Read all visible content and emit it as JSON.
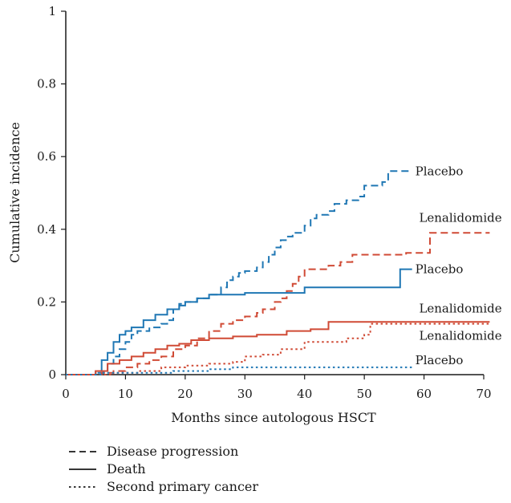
{
  "chart_data": {
    "type": "line",
    "title": "",
    "xlabel": "Months since autologous HSCT",
    "ylabel": "Cumulative incidence",
    "xlim": [
      0,
      70
    ],
    "ylim": [
      0,
      1
    ],
    "xticks": [
      "0",
      "10",
      "20",
      "30",
      "40",
      "50",
      "60",
      "70"
    ],
    "yticks": [
      "0",
      "0.2",
      "0.4",
      "0.6",
      "0.8",
      "1"
    ],
    "grid": false,
    "legend_position": "bottom-left",
    "legend": [
      {
        "label": "Disease progression",
        "style": "dashed"
      },
      {
        "label": "Death",
        "style": "solid"
      },
      {
        "label": "Second primary cancer",
        "style": "dotted"
      }
    ],
    "colors": {
      "placebo": "#1f77b4",
      "lenalidomide": "#d04a35",
      "axis": "#1a1a1a"
    },
    "series": [
      {
        "name": "Placebo",
        "arm": "placebo",
        "outcome": "Disease progression",
        "style": "dashed",
        "end_label": "Placebo",
        "points": [
          [
            0,
            0
          ],
          [
            5,
            0.005
          ],
          [
            7,
            0.03
          ],
          [
            8,
            0.05
          ],
          [
            9,
            0.07
          ],
          [
            10,
            0.09
          ],
          [
            11,
            0.11
          ],
          [
            12,
            0.12
          ],
          [
            14,
            0.13
          ],
          [
            16,
            0.14
          ],
          [
            17,
            0.15
          ],
          [
            18,
            0.18
          ],
          [
            19,
            0.195
          ],
          [
            20,
            0.2
          ],
          [
            22,
            0.21
          ],
          [
            24,
            0.22
          ],
          [
            26,
            0.24
          ],
          [
            27,
            0.26
          ],
          [
            28,
            0.27
          ],
          [
            29,
            0.28
          ],
          [
            30,
            0.285
          ],
          [
            32,
            0.295
          ],
          [
            33,
            0.31
          ],
          [
            34,
            0.33
          ],
          [
            35,
            0.35
          ],
          [
            36,
            0.37
          ],
          [
            37,
            0.38
          ],
          [
            38,
            0.39
          ],
          [
            40,
            0.41
          ],
          [
            41,
            0.43
          ],
          [
            42,
            0.44
          ],
          [
            44,
            0.45
          ],
          [
            45,
            0.47
          ],
          [
            47,
            0.48
          ],
          [
            49,
            0.49
          ],
          [
            50,
            0.52
          ],
          [
            53,
            0.53
          ],
          [
            54,
            0.56
          ],
          [
            58,
            0.56
          ]
        ]
      },
      {
        "name": "Lenalidomide",
        "arm": "lenalidomide",
        "outcome": "Disease progression",
        "style": "dashed",
        "end_label": "Lenalidomide",
        "points": [
          [
            0,
            0
          ],
          [
            6,
            0.005
          ],
          [
            8,
            0.01
          ],
          [
            10,
            0.02
          ],
          [
            12,
            0.03
          ],
          [
            14,
            0.04
          ],
          [
            16,
            0.05
          ],
          [
            18,
            0.07
          ],
          [
            20,
            0.08
          ],
          [
            22,
            0.1
          ],
          [
            24,
            0.12
          ],
          [
            26,
            0.14
          ],
          [
            28,
            0.15
          ],
          [
            30,
            0.16
          ],
          [
            32,
            0.17
          ],
          [
            33,
            0.18
          ],
          [
            35,
            0.2
          ],
          [
            36,
            0.21
          ],
          [
            37,
            0.23
          ],
          [
            38,
            0.25
          ],
          [
            39,
            0.27
          ],
          [
            40,
            0.29
          ],
          [
            44,
            0.3
          ],
          [
            46,
            0.31
          ],
          [
            48,
            0.33
          ],
          [
            52,
            0.33
          ],
          [
            57,
            0.335
          ],
          [
            61,
            0.39
          ],
          [
            71,
            0.39
          ]
        ]
      },
      {
        "name": "Placebo",
        "arm": "placebo",
        "outcome": "Death",
        "style": "solid",
        "end_label": "Placebo",
        "points": [
          [
            0,
            0
          ],
          [
            5,
            0.01
          ],
          [
            6,
            0.04
          ],
          [
            7,
            0.06
          ],
          [
            8,
            0.09
          ],
          [
            9,
            0.11
          ],
          [
            10,
            0.12
          ],
          [
            11,
            0.13
          ],
          [
            13,
            0.15
          ],
          [
            15,
            0.165
          ],
          [
            17,
            0.18
          ],
          [
            19,
            0.19
          ],
          [
            20,
            0.2
          ],
          [
            22,
            0.21
          ],
          [
            24,
            0.22
          ],
          [
            28,
            0.22
          ],
          [
            30,
            0.225
          ],
          [
            36,
            0.225
          ],
          [
            40,
            0.24
          ],
          [
            44,
            0.24
          ],
          [
            50,
            0.24
          ],
          [
            55,
            0.24
          ],
          [
            56,
            0.29
          ],
          [
            58,
            0.29
          ]
        ]
      },
      {
        "name": "Lenalidomide",
        "arm": "lenalidomide",
        "outcome": "Death",
        "style": "solid",
        "end_label": "Lenalidomide",
        "points": [
          [
            0,
            0
          ],
          [
            5,
            0.01
          ],
          [
            7,
            0.03
          ],
          [
            9,
            0.04
          ],
          [
            11,
            0.05
          ],
          [
            13,
            0.06
          ],
          [
            15,
            0.07
          ],
          [
            17,
            0.08
          ],
          [
            19,
            0.085
          ],
          [
            21,
            0.095
          ],
          [
            24,
            0.1
          ],
          [
            28,
            0.105
          ],
          [
            32,
            0.11
          ],
          [
            37,
            0.12
          ],
          [
            41,
            0.125
          ],
          [
            44,
            0.145
          ],
          [
            55,
            0.145
          ],
          [
            71,
            0.145
          ]
        ]
      },
      {
        "name": "Lenalidomide",
        "arm": "lenalidomide",
        "outcome": "Second primary cancer",
        "style": "dotted",
        "end_label": "Lenalidomide",
        "points": [
          [
            0,
            0
          ],
          [
            8,
            0.005
          ],
          [
            12,
            0.01
          ],
          [
            16,
            0.02
          ],
          [
            20,
            0.025
          ],
          [
            24,
            0.03
          ],
          [
            28,
            0.035
          ],
          [
            30,
            0.05
          ],
          [
            33,
            0.055
          ],
          [
            36,
            0.07
          ],
          [
            40,
            0.09
          ],
          [
            45,
            0.09
          ],
          [
            47,
            0.1
          ],
          [
            50,
            0.11
          ],
          [
            51,
            0.14
          ],
          [
            71,
            0.14
          ]
        ]
      },
      {
        "name": "Placebo",
        "arm": "placebo",
        "outcome": "Second primary cancer",
        "style": "dotted",
        "end_label": "Placebo",
        "points": [
          [
            0,
            0
          ],
          [
            6,
            0.005
          ],
          [
            12,
            0.005
          ],
          [
            18,
            0.01
          ],
          [
            24,
            0.015
          ],
          [
            28,
            0.02
          ],
          [
            40,
            0.02
          ],
          [
            58,
            0.02
          ]
        ]
      }
    ]
  }
}
